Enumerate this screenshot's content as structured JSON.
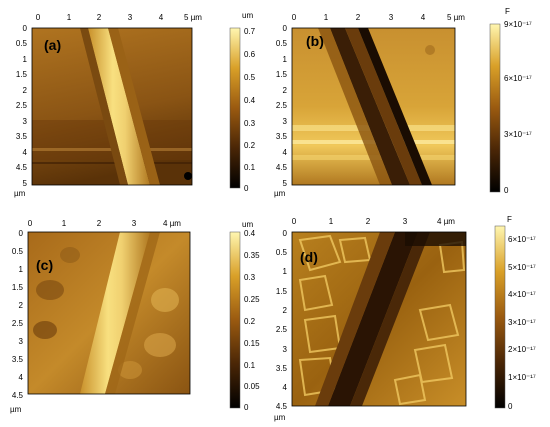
{
  "colormap": {
    "low": "#000000",
    "mid": "#9a5a10",
    "high": "#fff6b0"
  },
  "panels": [
    {
      "id": "a",
      "label": "(a)",
      "x_ticks": [
        "0",
        "1",
        "2",
        "3",
        "4",
        "5 µm"
      ],
      "y_ticks": [
        "0",
        "0.5",
        "1",
        "1.5",
        "2",
        "2.5",
        "3",
        "3.5",
        "4",
        "4.5",
        "5"
      ],
      "axis_unit": "µm",
      "colorbar": {
        "unit": "um",
        "ticks": [
          "0.7",
          "0.6",
          "0.5",
          "0.4",
          "0.3",
          "0.2",
          "0.1",
          "0"
        ]
      },
      "image_icon": "afm-topography-ridge"
    },
    {
      "id": "b",
      "label": "(b)",
      "x_ticks": [
        "0",
        "1",
        "2",
        "3",
        "4",
        "5 µm"
      ],
      "y_ticks": [
        "0",
        "0.5",
        "1",
        "1.5",
        "2",
        "2.5",
        "3",
        "3.5",
        "4",
        "4.5",
        "5"
      ],
      "axis_unit": "µm",
      "colorbar": {
        "unit": "F",
        "ticks": [
          "9×10⁻¹⁷",
          "6×10⁻¹⁷",
          "3×10⁻¹⁷",
          "0"
        ]
      },
      "image_icon": "capacitance-map-dark-ridge"
    },
    {
      "id": "c",
      "label": "(c)",
      "x_ticks": [
        "0",
        "1",
        "2",
        "3",
        "4 µm"
      ],
      "y_ticks": [
        "0",
        "0.5",
        "1",
        "1.5",
        "2",
        "2.5",
        "3",
        "3.5",
        "4",
        "4.5"
      ],
      "axis_unit": "µm",
      "colorbar": {
        "unit": "um",
        "ticks": [
          "0.4",
          "0.35",
          "0.3",
          "0.25",
          "0.2",
          "0.15",
          "0.1",
          "0.05",
          "0"
        ]
      },
      "image_icon": "afm-topography-grains"
    },
    {
      "id": "d",
      "label": "(d)",
      "x_ticks": [
        "0",
        "1",
        "2",
        "3",
        "4 µm"
      ],
      "y_ticks": [
        "0",
        "0.5",
        "1",
        "1.5",
        "2",
        "2.5",
        "3",
        "3.5",
        "4",
        "4.5"
      ],
      "axis_unit": "µm",
      "colorbar": {
        "unit": "F",
        "ticks": [
          "6×10⁻¹⁷",
          "5×10⁻¹⁷",
          "4×10⁻¹⁷",
          "3×10⁻¹⁷",
          "2×10⁻¹⁷",
          "1×10⁻¹⁷",
          "0"
        ]
      },
      "image_icon": "capacitance-map-grain-boundaries"
    }
  ]
}
